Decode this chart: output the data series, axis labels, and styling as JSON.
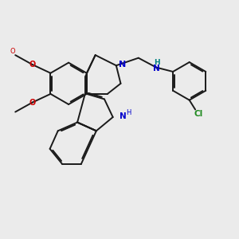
{
  "bg_color": "#ebebeb",
  "bond_color": "#1a1a1a",
  "nitrogen_color": "#0000cc",
  "oxygen_color": "#cc0000",
  "chlorine_color": "#228b22",
  "nh_color": "#008080",
  "lw": 1.4,
  "dbg": 0.055,
  "xlim": [
    0,
    10
  ],
  "ylim": [
    0,
    10
  ]
}
